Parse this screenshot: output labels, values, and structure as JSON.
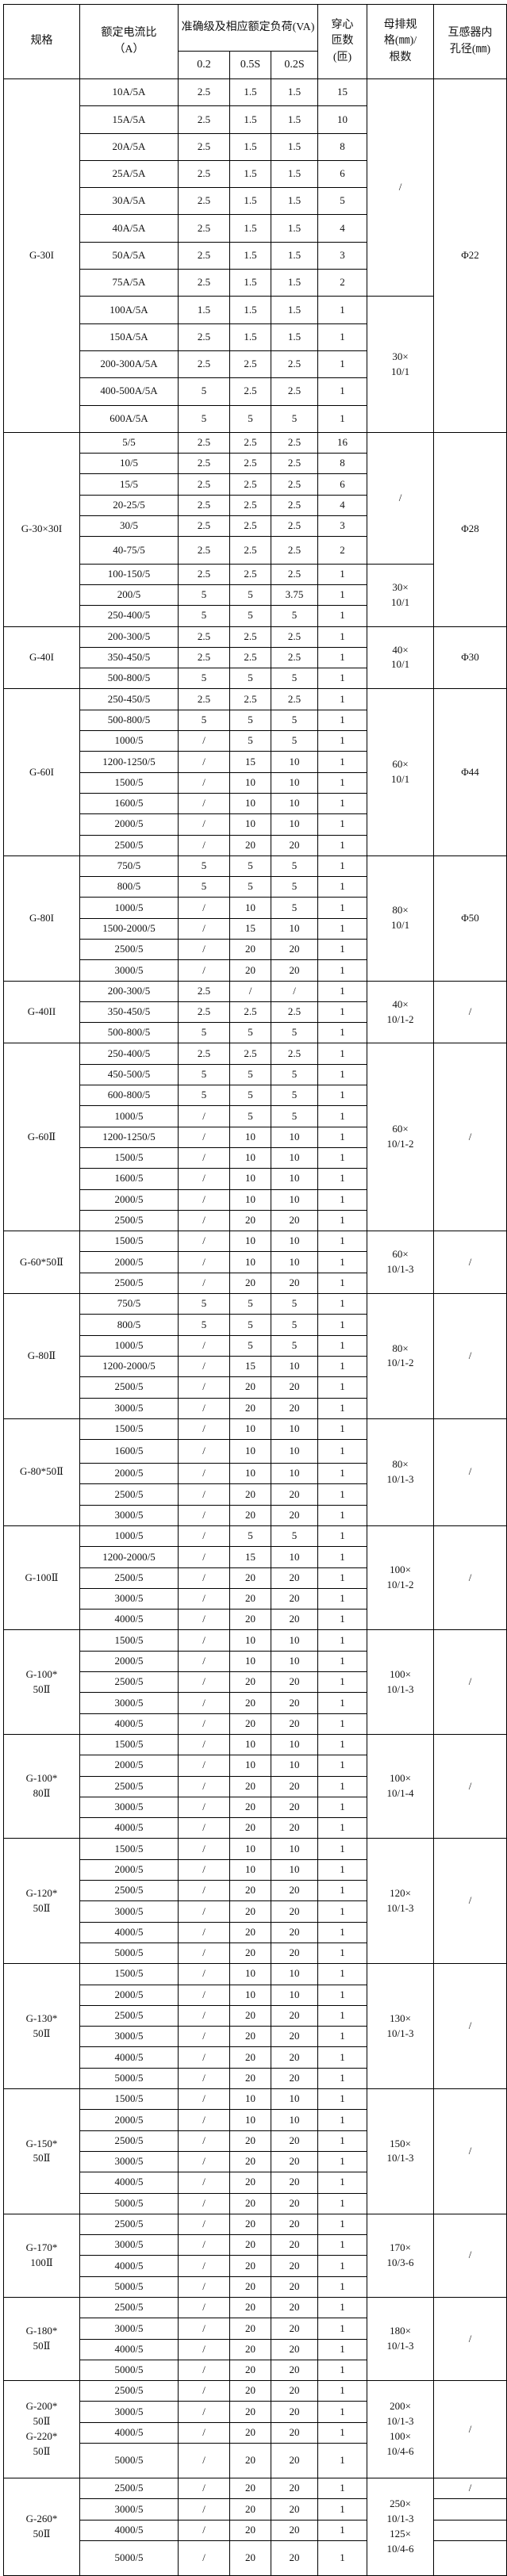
{
  "header": {
    "model": "规格",
    "ratio": "额定电流比\n（A）",
    "accuracy": "准确级及相应额定负荷(VA)",
    "classes": [
      "0.2",
      "0.5S",
      "0.2S"
    ],
    "turns": "穿心\n匝数\n(匝)",
    "busbar": "母排规\n格(㎜)/\n根数",
    "bore": "互感器内\n孔径(㎜)"
  },
  "groups": [
    {
      "model": "G-30I",
      "rows": [
        [
          "10A/5A",
          "2.5",
          "1.5",
          "1.5",
          "15"
        ],
        [
          "15A/5A",
          "2.5",
          "1.5",
          "1.5",
          "10"
        ],
        [
          "20A/5A",
          "2.5",
          "1.5",
          "1.5",
          "8"
        ],
        [
          "25A/5A",
          "2.5",
          "1.5",
          "1.5",
          "6"
        ],
        [
          "30A/5A",
          "2.5",
          "1.5",
          "1.5",
          "5"
        ],
        [
          "40A/5A",
          "2.5",
          "1.5",
          "1.5",
          "4"
        ],
        [
          "50A/5A",
          "2.5",
          "1.5",
          "1.5",
          "3"
        ],
        [
          "75A/5A",
          "2.5",
          "1.5",
          "1.5",
          "2"
        ],
        [
          "100A/5A",
          "1.5",
          "1.5",
          "1.5",
          "1"
        ],
        [
          "150A/5A",
          "2.5",
          "1.5",
          "1.5",
          "1"
        ],
        [
          "200-300A/5A",
          "2.5",
          "2.5",
          "2.5",
          "1"
        ],
        [
          "400-500A/5A",
          "5",
          "2.5",
          "2.5",
          "1"
        ],
        [
          "600A/5A",
          "5",
          "5",
          "5",
          "1"
        ]
      ],
      "busbar": [
        {
          "text": "/",
          "span": 8
        },
        {
          "text": "30×\n10/1",
          "span": 5
        }
      ],
      "bore": [
        {
          "text": "Φ22",
          "span": 13
        }
      ]
    },
    {
      "model": "G-30×30I",
      "rows": [
        [
          "5/5",
          "2.5",
          "2.5",
          "2.5",
          "16"
        ],
        [
          "10/5",
          "2.5",
          "2.5",
          "2.5",
          "8"
        ],
        [
          "15/5",
          "2.5",
          "2.5",
          "2.5",
          "6"
        ],
        [
          "20-25/5",
          "2.5",
          "2.5",
          "2.5",
          "4"
        ],
        [
          "30/5",
          "2.5",
          "2.5",
          "2.5",
          "3"
        ],
        [
          "40-75/5",
          "2.5",
          "2.5",
          "2.5",
          "2"
        ],
        [
          "100-150/5",
          "2.5",
          "2.5",
          "2.5",
          "1"
        ],
        [
          "200/5",
          "5",
          "5",
          "3.75",
          "1"
        ],
        [
          "250-400/5",
          "5",
          "5",
          "5",
          "1"
        ]
      ],
      "busbar": [
        {
          "text": "/",
          "span": 6
        },
        {
          "text": "30×\n10/1",
          "span": 3
        }
      ],
      "bore": [
        {
          "text": "Φ28",
          "span": 9
        }
      ]
    },
    {
      "model": "G-40I",
      "rows": [
        [
          "200-300/5",
          "2.5",
          "2.5",
          "2.5",
          "1"
        ],
        [
          "350-450/5",
          "2.5",
          "2.5",
          "2.5",
          "1"
        ],
        [
          "500-800/5",
          "5",
          "5",
          "5",
          "1"
        ]
      ],
      "busbar": [
        {
          "text": "40×\n10/1",
          "span": 3
        }
      ],
      "bore": [
        {
          "text": "Φ30",
          "span": 3
        }
      ]
    },
    {
      "model": "G-60I",
      "rows": [
        [
          "250-450/5",
          "2.5",
          "2.5",
          "2.5",
          "1"
        ],
        [
          "500-800/5",
          "5",
          "5",
          "5",
          "1"
        ],
        [
          "1000/5",
          "/",
          "5",
          "5",
          "1"
        ],
        [
          "1200-1250/5",
          "/",
          "15",
          "10",
          "1"
        ],
        [
          "1500/5",
          "/",
          "10",
          "10",
          "1"
        ],
        [
          "1600/5",
          "/",
          "10",
          "10",
          "1"
        ],
        [
          "2000/5",
          "/",
          "10",
          "10",
          "1"
        ],
        [
          "2500/5",
          "/",
          "20",
          "20",
          "1"
        ]
      ],
      "busbar": [
        {
          "text": "60×\n10/1",
          "span": 8
        }
      ],
      "bore": [
        {
          "text": "Φ44",
          "span": 8
        }
      ]
    },
    {
      "model": "G-80I",
      "rows": [
        [
          "750/5",
          "5",
          "5",
          "5",
          "1"
        ],
        [
          "800/5",
          "5",
          "5",
          "5",
          "1"
        ],
        [
          "1000/5",
          "/",
          "10",
          "5",
          "1"
        ],
        [
          "1500-2000/5",
          "/",
          "15",
          "10",
          "1"
        ],
        [
          "2500/5",
          "/",
          "20",
          "20",
          "1"
        ],
        [
          "3000/5",
          "/",
          "20",
          "20",
          "1"
        ]
      ],
      "busbar": [
        {
          "text": "80×\n10/1",
          "span": 6
        }
      ],
      "bore": [
        {
          "text": "Φ50",
          "span": 6
        }
      ]
    },
    {
      "model": "G-40II",
      "rows": [
        [
          "200-300/5",
          "2.5",
          "/",
          "/",
          "1"
        ],
        [
          "350-450/5",
          "2.5",
          "2.5",
          "2.5",
          "1"
        ],
        [
          "500-800/5",
          "5",
          "5",
          "5",
          "1"
        ]
      ],
      "busbar": [
        {
          "text": "40×\n10/1-2",
          "span": 3
        }
      ],
      "bore": [
        {
          "text": "/",
          "span": 3
        }
      ]
    },
    {
      "model": "G-60Ⅱ",
      "rows": [
        [
          "250-400/5",
          "2.5",
          "2.5",
          "2.5",
          "1"
        ],
        [
          "450-500/5",
          "5",
          "5",
          "5",
          "1"
        ],
        [
          "600-800/5",
          "5",
          "5",
          "5",
          "1"
        ],
        [
          "1000/5",
          "/",
          "5",
          "5",
          "1"
        ],
        [
          "1200-1250/5",
          "/",
          "10",
          "10",
          "1"
        ],
        [
          "1500/5",
          "/",
          "10",
          "10",
          "1"
        ],
        [
          "1600/5",
          "/",
          "10",
          "10",
          "1"
        ],
        [
          "2000/5",
          "/",
          "10",
          "10",
          "1"
        ],
        [
          "2500/5",
          "/",
          "20",
          "20",
          "1"
        ]
      ],
      "busbar": [
        {
          "text": "60×\n10/1-2",
          "span": 9
        }
      ],
      "bore": [
        {
          "text": "/",
          "span": 9
        }
      ]
    },
    {
      "model": "G-60*50Ⅱ",
      "rows": [
        [
          "1500/5",
          "/",
          "10",
          "10",
          "1"
        ],
        [
          "2000/5",
          "/",
          "10",
          "10",
          "1"
        ],
        [
          "2500/5",
          "/",
          "20",
          "20",
          "1"
        ]
      ],
      "busbar": [
        {
          "text": "60×\n10/1-3",
          "span": 3
        }
      ],
      "bore": [
        {
          "text": "/",
          "span": 3
        }
      ]
    },
    {
      "model": "G-80Ⅱ",
      "rows": [
        [
          "750/5",
          "5",
          "5",
          "5",
          "1"
        ],
        [
          "800/5",
          "5",
          "5",
          "5",
          "1"
        ],
        [
          "1000/5",
          "/",
          "5",
          "5",
          "1"
        ],
        [
          "1200-2000/5",
          "/",
          "15",
          "10",
          "1"
        ],
        [
          "2500/5",
          "/",
          "20",
          "20",
          "1"
        ],
        [
          "3000/5",
          "/",
          "20",
          "20",
          "1"
        ]
      ],
      "busbar": [
        {
          "text": "80×\n10/1-2",
          "span": 6
        }
      ],
      "bore": [
        {
          "text": "/",
          "span": 6
        }
      ]
    },
    {
      "model": "G-80*50Ⅱ",
      "rows": [
        [
          "1500/5",
          "/",
          "10",
          "10",
          "1"
        ],
        [
          "1600/5",
          "/",
          "10",
          "10",
          "1"
        ],
        [
          "2000/5",
          "/",
          "10",
          "10",
          "1"
        ],
        [
          "2500/5",
          "/",
          "20",
          "20",
          "1"
        ],
        [
          "3000/5",
          "/",
          "20",
          "20",
          "1"
        ]
      ],
      "busbar": [
        {
          "text": "80×\n10/1-3",
          "span": 5
        }
      ],
      "bore": [
        {
          "text": "/",
          "span": 5
        }
      ]
    },
    {
      "model": "G-100Ⅱ",
      "rows": [
        [
          "1000/5",
          "/",
          "5",
          "5",
          "1"
        ],
        [
          "1200-2000/5",
          "/",
          "15",
          "10",
          "1"
        ],
        [
          "2500/5",
          "/",
          "20",
          "20",
          "1"
        ],
        [
          "3000/5",
          "/",
          "20",
          "20",
          "1"
        ],
        [
          "4000/5",
          "/",
          "20",
          "20",
          "1"
        ]
      ],
      "busbar": [
        {
          "text": "100×\n10/1-2",
          "span": 5
        }
      ],
      "bore": [
        {
          "text": "/",
          "span": 5
        }
      ]
    },
    {
      "model": "G-100*\n50Ⅱ",
      "rows": [
        [
          "1500/5",
          "/",
          "10",
          "10",
          "1"
        ],
        [
          "2000/5",
          "/",
          "10",
          "10",
          "1"
        ],
        [
          "2500/5",
          "/",
          "20",
          "20",
          "1"
        ],
        [
          "3000/5",
          "/",
          "20",
          "20",
          "1"
        ],
        [
          "4000/5",
          "/",
          "20",
          "20",
          "1"
        ]
      ],
      "busbar": [
        {
          "text": "100×\n10/1-3",
          "span": 5
        }
      ],
      "bore": [
        {
          "text": "/",
          "span": 5
        }
      ]
    },
    {
      "model": "G-100*\n80Ⅱ",
      "rows": [
        [
          "1500/5",
          "/",
          "10",
          "10",
          "1"
        ],
        [
          "2000/5",
          "/",
          "10",
          "10",
          "1"
        ],
        [
          "2500/5",
          "/",
          "20",
          "20",
          "1"
        ],
        [
          "3000/5",
          "/",
          "20",
          "20",
          "1"
        ],
        [
          "4000/5",
          "/",
          "20",
          "20",
          "1"
        ]
      ],
      "busbar": [
        {
          "text": "100×\n10/1-4",
          "span": 5
        }
      ],
      "bore": [
        {
          "text": "/",
          "span": 5
        }
      ]
    },
    {
      "model": "G-120*\n50Ⅱ",
      "rows": [
        [
          "1500/5",
          "/",
          "10",
          "10",
          "1"
        ],
        [
          "2000/5",
          "/",
          "10",
          "10",
          "1"
        ],
        [
          "2500/5",
          "/",
          "20",
          "20",
          "1"
        ],
        [
          "3000/5",
          "/",
          "20",
          "20",
          "1"
        ],
        [
          "4000/5",
          "/",
          "20",
          "20",
          "1"
        ],
        [
          "5000/5",
          "/",
          "20",
          "20",
          "1"
        ]
      ],
      "busbar": [
        {
          "text": "120×\n10/1-3",
          "span": 6
        }
      ],
      "bore": [
        {
          "text": "/",
          "span": 6
        }
      ]
    },
    {
      "model": "G-130*\n50Ⅱ",
      "rows": [
        [
          "1500/5",
          "/",
          "10",
          "10",
          "1"
        ],
        [
          "2000/5",
          "/",
          "10",
          "10",
          "1"
        ],
        [
          "2500/5",
          "/",
          "20",
          "20",
          "1"
        ],
        [
          "3000/5",
          "/",
          "20",
          "20",
          "1"
        ],
        [
          "4000/5",
          "/",
          "20",
          "20",
          "1"
        ],
        [
          "5000/5",
          "/",
          "20",
          "20",
          "1"
        ]
      ],
      "busbar": [
        {
          "text": "130×\n10/1-3",
          "span": 6
        }
      ],
      "bore": [
        {
          "text": "/",
          "span": 6
        }
      ]
    },
    {
      "model": "G-150*\n50Ⅱ",
      "rows": [
        [
          "1500/5",
          "/",
          "10",
          "10",
          "1"
        ],
        [
          "2000/5",
          "/",
          "10",
          "10",
          "1"
        ],
        [
          "2500/5",
          "/",
          "20",
          "20",
          "1"
        ],
        [
          "3000/5",
          "/",
          "20",
          "20",
          "1"
        ],
        [
          "4000/5",
          "/",
          "20",
          "20",
          "1"
        ],
        [
          "5000/5",
          "/",
          "20",
          "20",
          "1"
        ]
      ],
      "busbar": [
        {
          "text": "150×\n10/1-3",
          "span": 6
        }
      ],
      "bore": [
        {
          "text": "/",
          "span": 6
        }
      ]
    },
    {
      "model": "G-170*\n100Ⅱ",
      "rows": [
        [
          "2500/5",
          "/",
          "20",
          "20",
          "1"
        ],
        [
          "3000/5",
          "/",
          "20",
          "20",
          "1"
        ],
        [
          "4000/5",
          "/",
          "20",
          "20",
          "1"
        ],
        [
          "5000/5",
          "/",
          "20",
          "20",
          "1"
        ]
      ],
      "busbar": [
        {
          "text": "170×\n10/3-6",
          "span": 4
        }
      ],
      "bore": [
        {
          "text": "/",
          "span": 4
        }
      ]
    },
    {
      "model": "G-180*\n50Ⅱ",
      "rows": [
        [
          "2500/5",
          "/",
          "20",
          "20",
          "1"
        ],
        [
          "3000/5",
          "/",
          "20",
          "20",
          "1"
        ],
        [
          "4000/5",
          "/",
          "20",
          "20",
          "1"
        ],
        [
          "5000/5",
          "/",
          "20",
          "20",
          "1"
        ]
      ],
      "busbar": [
        {
          "text": "180×\n10/1-3",
          "span": 4
        }
      ],
      "bore": [
        {
          "text": "/",
          "span": 4
        }
      ]
    },
    {
      "model": "G-200*\n50Ⅱ\nG-220*\n50Ⅱ",
      "rows": [
        [
          "2500/5",
          "/",
          "20",
          "20",
          "1"
        ],
        [
          "3000/5",
          "/",
          "20",
          "20",
          "1"
        ],
        [
          "4000/5",
          "/",
          "20",
          "20",
          "1"
        ],
        [
          "5000/5",
          "/",
          "20",
          "20",
          "1"
        ]
      ],
      "busbar": [
        {
          "text": "200×\n10/1-3\n100×\n10/4-6",
          "span": 4
        }
      ],
      "bore": [
        {
          "text": "/",
          "span": 4
        }
      ]
    },
    {
      "model": "G-260*\n50Ⅱ",
      "rows": [
        [
          "2500/5",
          "/",
          "20",
          "20",
          "1"
        ],
        [
          "3000/5",
          "/",
          "20",
          "20",
          "1"
        ],
        [
          "4000/5",
          "/",
          "20",
          "20",
          "1"
        ],
        [
          "5000/5",
          "/",
          "20",
          "20",
          "1"
        ]
      ],
      "busbar": [
        {
          "text": "250×\n10/1-3\n125×\n10/4-6",
          "span": 4
        }
      ],
      "bore": [
        {
          "text": "/",
          "span": 1
        },
        {
          "text": "",
          "span": 1
        },
        {
          "text": "",
          "span": 1
        },
        {
          "text": "",
          "span": 1
        }
      ]
    }
  ]
}
